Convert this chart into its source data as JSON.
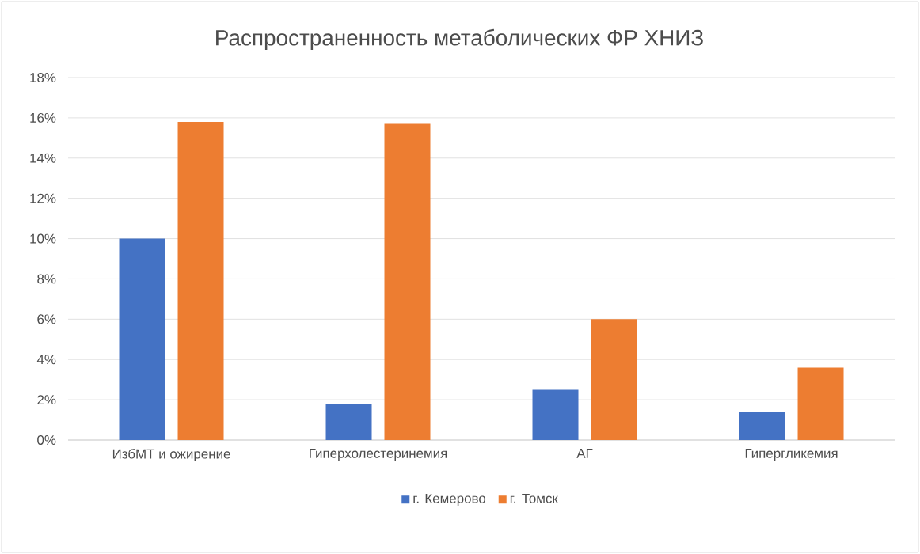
{
  "chart_data": {
    "type": "bar",
    "title": "Распространенность метаболических ФР ХНИЗ",
    "categories": [
      "ИзбМТ и ожирение",
      "Гиперхолестеринемия",
      "АГ",
      "Гипергликемия"
    ],
    "series": [
      {
        "name": "г. Кемерово",
        "color": "#4472c4",
        "values": [
          10.0,
          1.8,
          2.5,
          1.4
        ]
      },
      {
        "name": "г. Томск",
        "color": "#ed7d31",
        "values": [
          15.8,
          15.7,
          6.0,
          3.6
        ]
      }
    ],
    "ylim": [
      0,
      18
    ],
    "yticks": [
      {
        "value": 0,
        "label": "0%"
      },
      {
        "value": 2,
        "label": "2%"
      },
      {
        "value": 4,
        "label": "4%"
      },
      {
        "value": 6,
        "label": "6%"
      },
      {
        "value": 8,
        "label": "8%"
      },
      {
        "value": 10,
        "label": "10%"
      },
      {
        "value": 12,
        "label": "12%"
      },
      {
        "value": 14,
        "label": "14%"
      },
      {
        "value": 16,
        "label": "16%"
      },
      {
        "value": 18,
        "label": "18%"
      }
    ],
    "grid": "y",
    "legend": "bottom"
  }
}
